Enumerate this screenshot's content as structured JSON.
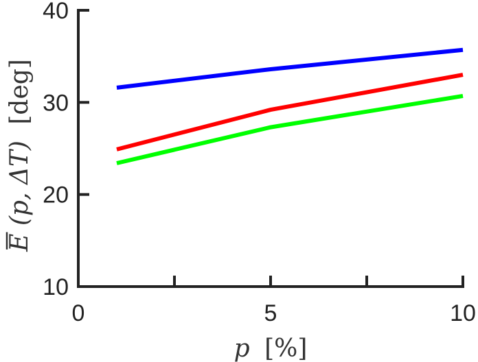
{
  "chart_data": {
    "type": "line",
    "xlabel": {
      "var": "p",
      "unit": "[%]"
    },
    "ylabel": {
      "prefix": "E",
      "args": "(p, ΔT)",
      "unit": "[deg]"
    },
    "xlim": [
      0,
      10
    ],
    "ylim": [
      10,
      40
    ],
    "x_ticks": [
      0,
      5,
      10
    ],
    "y_ticks": [
      10,
      20,
      30,
      40
    ],
    "x_tick_labels": [
      "0",
      "5",
      "10"
    ],
    "y_tick_labels": [
      "10",
      "20",
      "30",
      "40"
    ],
    "grid": false,
    "legend": "none",
    "x": [
      1,
      5,
      10
    ],
    "series": [
      {
        "color": "#0000ff",
        "values": [
          31.6,
          33.6,
          35.7
        ]
      },
      {
        "color": "#ff0000",
        "values": [
          24.9,
          29.2,
          33.0
        ]
      },
      {
        "color": "#00ff00",
        "values": [
          23.4,
          27.3,
          30.7
        ]
      }
    ]
  }
}
